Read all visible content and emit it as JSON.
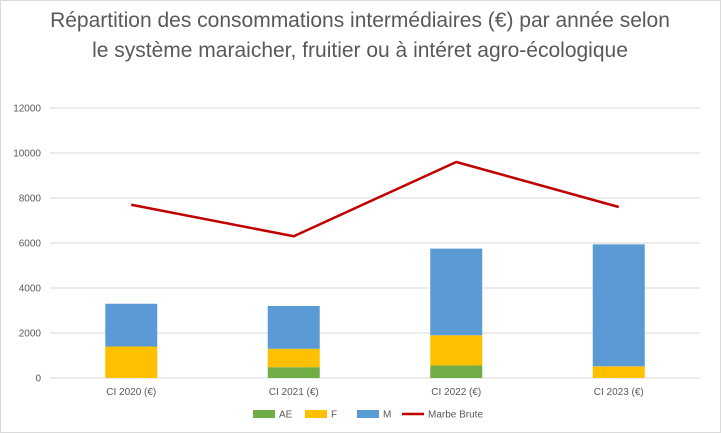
{
  "chart_data": {
    "type": "bar",
    "title": "Répartition des consommations intermédiaires (€) par année selon le système maraicher, fruitier ou à intéret agro-écologique",
    "categories": [
      "CI 2020 (€)",
      "CI 2021 (€)",
      "CI 2022 (€)",
      "CI 2023 (€)"
    ],
    "stacked": true,
    "series": [
      {
        "name": "AE",
        "kind": "bar",
        "color": "#70ad47",
        "values": [
          0,
          480,
          560,
          0
        ]
      },
      {
        "name": "F",
        "kind": "bar",
        "color": "#ffc000",
        "values": [
          1400,
          820,
          1340,
          520
        ]
      },
      {
        "name": "M",
        "kind": "bar",
        "color": "#5b9bd5",
        "values": [
          1900,
          1900,
          3850,
          5420
        ]
      },
      {
        "name": "Marbe Brute",
        "kind": "line",
        "color": "#c00000",
        "values": [
          7700,
          6300,
          9600,
          7600
        ]
      }
    ],
    "yticks": [
      "0",
      "2000",
      "4000",
      "6000",
      "8000",
      "10000",
      "12000"
    ],
    "ylim": [
      0,
      12000
    ],
    "grid": true,
    "legend": "bottom",
    "xlabel": "",
    "ylabel": ""
  }
}
